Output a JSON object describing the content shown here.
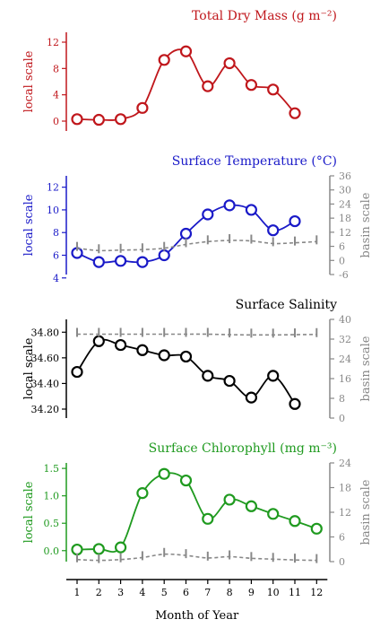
{
  "chart_data": [
    {
      "type": "line",
      "title": "Total Dry Mass (g m⁻²)",
      "color": "#c0171c",
      "ylabel": "local scale",
      "ylim": [
        -1.5,
        13.5
      ],
      "yticks": [
        "0",
        "4",
        "8",
        "12"
      ],
      "x": [
        1,
        2,
        3,
        4,
        5,
        6,
        7,
        8,
        9,
        10,
        11
      ],
      "series": [
        {
          "values": [
            0.3,
            0.2,
            0.3,
            2.0,
            9.3,
            10.6,
            5.3,
            8.8,
            5.5,
            4.8,
            1.2
          ]
        }
      ]
    },
    {
      "type": "line",
      "title": "Surface Temperature (°C)",
      "color": "#1a1ac8",
      "ylabel": "local scale",
      "y2label": "basin scale",
      "ylim": [
        4.3,
        13.0
      ],
      "yticks": [
        "4",
        "6",
        "8",
        "10",
        "12"
      ],
      "y2ticks": [
        "-6",
        "0",
        "6",
        "12",
        "18",
        "24",
        "30",
        "36"
      ],
      "y2lim": [
        -6,
        36
      ],
      "x": [
        1,
        2,
        3,
        4,
        5,
        6,
        7,
        8,
        9,
        10,
        11
      ],
      "series": [
        {
          "values": [
            6.2,
            5.4,
            5.5,
            5.4,
            6.0,
            7.9,
            9.6,
            10.4,
            10.0,
            8.2,
            9.0
          ]
        },
        {
          "axis": "y2",
          "x": [
            1,
            2,
            3,
            4,
            5,
            6,
            7,
            8,
            9,
            10,
            11,
            12
          ],
          "values": [
            5.2,
            4.2,
            4.4,
            4.6,
            5.2,
            6.8,
            8.0,
            8.5,
            8.3,
            7.2,
            7.5,
            8.0
          ]
        }
      ]
    },
    {
      "type": "line",
      "title": "Surface Salinity",
      "color": "#000000",
      "ylabel": "local scale",
      "y2label": "basin scale",
      "ylim": [
        34.13,
        34.9
      ],
      "yticks": [
        "34.20",
        "34.40",
        "34.60",
        "34.80"
      ],
      "y2ticks": [
        "0",
        "8",
        "16",
        "24",
        "32",
        "40"
      ],
      "y2lim": [
        0,
        40
      ],
      "x": [
        1,
        2,
        3,
        4,
        5,
        6,
        7,
        8,
        9,
        10,
        11
      ],
      "series": [
        {
          "values": [
            34.49,
            34.73,
            34.7,
            34.66,
            34.62,
            34.61,
            34.46,
            34.42,
            34.29,
            34.46,
            34.24
          ]
        },
        {
          "axis": "y2",
          "x": [
            1,
            2,
            3,
            4,
            5,
            6,
            7,
            8,
            9,
            10,
            11,
            12
          ],
          "values": [
            34.0,
            34.0,
            34.0,
            34.0,
            34.0,
            34.0,
            34.0,
            33.8,
            33.7,
            33.7,
            33.8,
            33.9
          ]
        }
      ]
    },
    {
      "type": "line",
      "title": "Surface Chlorophyll (mg m⁻³)",
      "color": "#1f9a1f",
      "ylabel": "local scale",
      "y2label": "basin scale",
      "xlabel": "Month of Year",
      "ylim": [
        -0.2,
        1.6
      ],
      "yticks": [
        "0.0",
        "0.5",
        "1.0",
        "1.5"
      ],
      "y2ticks": [
        "0",
        "6",
        "12",
        "18",
        "24"
      ],
      "y2lim": [
        0,
        24
      ],
      "xticks": [
        "1",
        "2",
        "3",
        "4",
        "5",
        "6",
        "7",
        "8",
        "9",
        "10",
        "11",
        "12"
      ],
      "x": [
        1,
        2,
        3,
        4,
        5,
        6,
        7,
        8,
        9,
        10,
        11,
        12
      ],
      "series": [
        {
          "values": [
            0.02,
            0.03,
            0.06,
            1.05,
            1.4,
            1.28,
            0.58,
            0.93,
            0.81,
            0.67,
            0.54,
            0.4
          ]
        },
        {
          "axis": "y2",
          "values": [
            0.5,
            0.3,
            0.5,
            1.0,
            1.8,
            1.5,
            0.9,
            1.2,
            0.8,
            0.6,
            0.4,
            0.3
          ]
        }
      ]
    }
  ]
}
